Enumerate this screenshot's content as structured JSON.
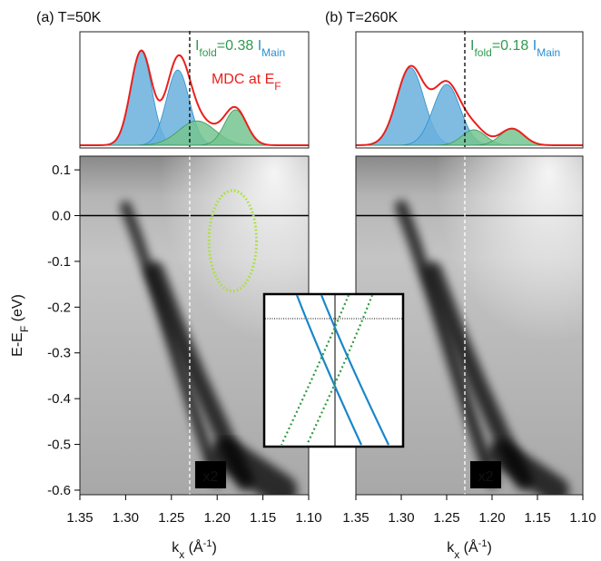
{
  "chart_data": [
    {
      "type": "image",
      "title": "(a) T=50K",
      "xlabel": [
        {
          "text": "k"
        },
        {
          "text": "x",
          "sub": true
        },
        {
          "text": " (Å"
        },
        {
          "text": "-1",
          "sup": true
        },
        {
          "text": ")"
        }
      ],
      "ylabel": [
        {
          "text": "E-E"
        },
        {
          "text": "F",
          "sub": true
        },
        {
          "text": " (eV)"
        }
      ],
      "xlim": [
        1.35,
        1.1
      ],
      "ylim": [
        -0.61,
        0.13
      ],
      "xticks": [
        1.35,
        {
          "value": 1.3,
          "label": "1.30"
        },
        1.25,
        {
          "value": 1.2,
          "label": "1.20"
        },
        1.15,
        {
          "value": 1.1,
          "label": "1.10"
        }
      ],
      "yticks": [
        0.1,
        {
          "value": 0,
          "label": "0.0"
        },
        -0.1,
        -0.2,
        -0.3,
        -0.4,
        -0.5,
        -0.6
      ],
      "fermi_level": 0,
      "cut_x": 1.23,
      "scale_label": "x2",
      "bands": [
        {
          "x": [
            1.3,
            1.287,
            1.265,
            1.243,
            1.222,
            1.2
          ],
          "y": [
            0.02,
            -0.05,
            -0.18,
            -0.32,
            -0.45,
            -0.58
          ],
          "width": 0.012
        },
        {
          "x": [
            1.268,
            1.245,
            1.22,
            1.195,
            1.17
          ],
          "y": [
            -0.12,
            -0.24,
            -0.36,
            -0.47,
            -0.58
          ],
          "width": 0.02
        },
        {
          "x": [
            1.19,
            1.16,
            1.13
          ],
          "y": [
            -0.52,
            -0.56,
            -0.6
          ],
          "width": 0.035
        }
      ],
      "circle": {
        "cx": 1.183,
        "cy": -0.055,
        "rx": 0.026,
        "ry": 0.11,
        "color": "#a6e22e"
      },
      "mdc": {
        "ylim": [
          0,
          1
        ],
        "fit_color": "#e8211d",
        "peaks": [
          {
            "center": 1.283,
            "amplitude": 0.85,
            "width": 0.0115,
            "color": "#6ab0dd"
          },
          {
            "center": 1.243,
            "amplitude": 0.68,
            "width": 0.0125,
            "color": "#6ab0dd"
          },
          {
            "center": 1.222,
            "amplitude": 0.22,
            "width": 0.02,
            "color": "#74c48f"
          },
          {
            "center": 1.18,
            "amplitude": 0.32,
            "width": 0.012,
            "color": "#74c48f"
          }
        ],
        "annotation": [
          {
            "text": "I",
            "color": "#2f9a4f"
          },
          {
            "text": "fold",
            "sub": true,
            "color": "#2f9a4f"
          },
          {
            "text": "=0.38 ",
            "color": "#2f9a4f"
          },
          {
            "text": "I",
            "color": "#2a8fcf"
          },
          {
            "text": "Main",
            "sub": true,
            "color": "#2a8fcf"
          }
        ],
        "label": [
          {
            "text": "MDC at E",
            "color": "#e8211d"
          },
          {
            "text": "F",
            "sub": true,
            "color": "#e8211d"
          }
        ]
      }
    },
    {
      "type": "image",
      "title": "(b) T=260K",
      "xlabel": [
        {
          "text": "k"
        },
        {
          "text": "x",
          "sub": true
        },
        {
          "text": " (Å"
        },
        {
          "text": "-1",
          "sup": true
        },
        {
          "text": ")"
        }
      ],
      "xlim": [
        1.35,
        1.1
      ],
      "ylim": [
        -0.61,
        0.13
      ],
      "xticks": [
        1.35,
        {
          "value": 1.3,
          "label": "1.30"
        },
        1.25,
        {
          "value": 1.2,
          "label": "1.20"
        },
        1.15,
        {
          "value": 1.1,
          "label": "1.10"
        }
      ],
      "fermi_level": 0,
      "cut_x": 1.23,
      "scale_label": "x2",
      "bands": [
        {
          "x": [
            1.3,
            1.287,
            1.265,
            1.243,
            1.222,
            1.2
          ],
          "y": [
            0.02,
            -0.05,
            -0.18,
            -0.32,
            -0.45,
            -0.58
          ],
          "width": 0.014
        },
        {
          "x": [
            1.265,
            1.24,
            1.215,
            1.19,
            1.165
          ],
          "y": [
            -0.12,
            -0.25,
            -0.37,
            -0.48,
            -0.58
          ],
          "width": 0.02
        },
        {
          "x": [
            1.19,
            1.16,
            1.13
          ],
          "y": [
            -0.52,
            -0.56,
            -0.6
          ],
          "width": 0.03
        }
      ],
      "mdc": {
        "ylim": [
          0,
          1
        ],
        "fit_color": "#e8211d",
        "peaks": [
          {
            "center": 1.29,
            "amplitude": 0.7,
            "width": 0.015,
            "color": "#6ab0dd"
          },
          {
            "center": 1.25,
            "amplitude": 0.55,
            "width": 0.015,
            "color": "#6ab0dd"
          },
          {
            "center": 1.22,
            "amplitude": 0.14,
            "width": 0.013,
            "color": "#74c48f"
          },
          {
            "center": 1.178,
            "amplitude": 0.15,
            "width": 0.013,
            "color": "#74c48f"
          }
        ],
        "annotation": [
          {
            "text": "I",
            "color": "#2f9a4f"
          },
          {
            "text": "fold",
            "sub": true,
            "color": "#2f9a4f"
          },
          {
            "text": "=0.18 ",
            "color": "#2f9a4f"
          },
          {
            "text": "I",
            "color": "#2a8fcf"
          },
          {
            "text": "Main",
            "sub": true,
            "color": "#2a8fcf"
          }
        ]
      }
    }
  ]
}
